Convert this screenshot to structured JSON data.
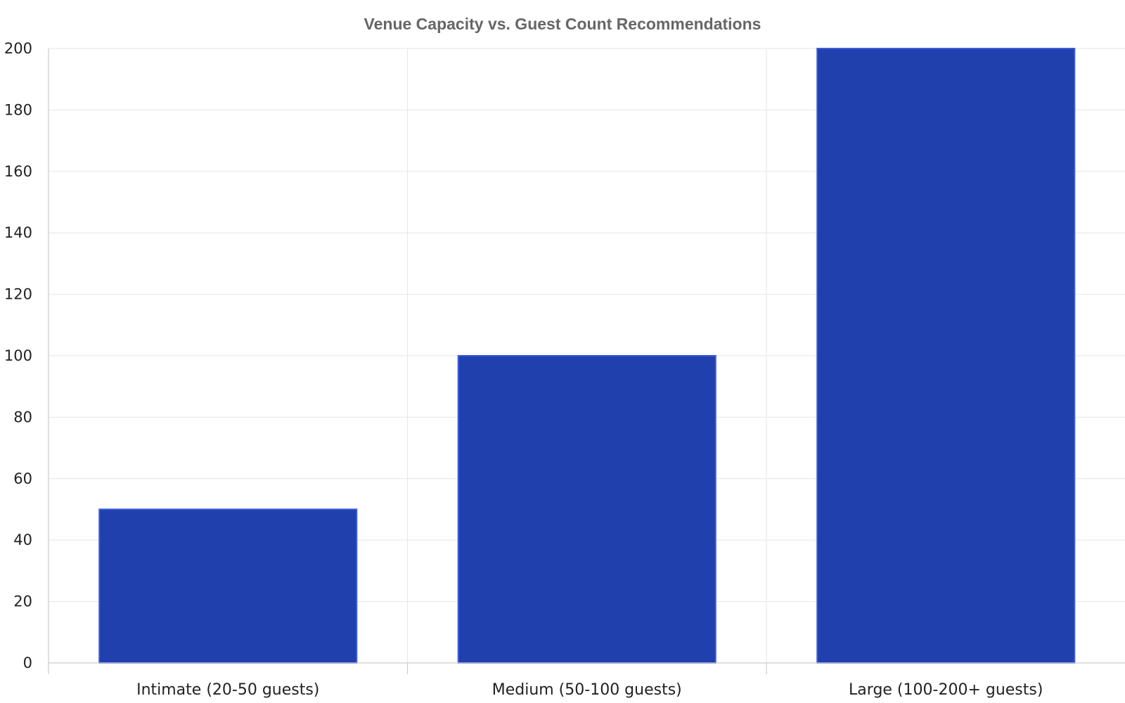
{
  "chart_data": {
    "type": "bar",
    "title": "Venue Capacity vs. Guest Count Recommendations",
    "xlabel": "",
    "ylabel": "",
    "categories": [
      "Intimate (20-50 guests)",
      "Medium (50-100 guests)",
      "Large (100-200+ guests)"
    ],
    "values": [
      50,
      100,
      200
    ],
    "ylim": [
      0,
      200
    ],
    "yticks": [
      "0",
      "20",
      "40",
      "60",
      "80",
      "100",
      "120",
      "140",
      "160",
      "180",
      "200"
    ],
    "grid": true,
    "legend": "none",
    "colors": {
      "bar_fill": "#1f40ad",
      "bar_stroke": "#3b5bd9"
    }
  }
}
